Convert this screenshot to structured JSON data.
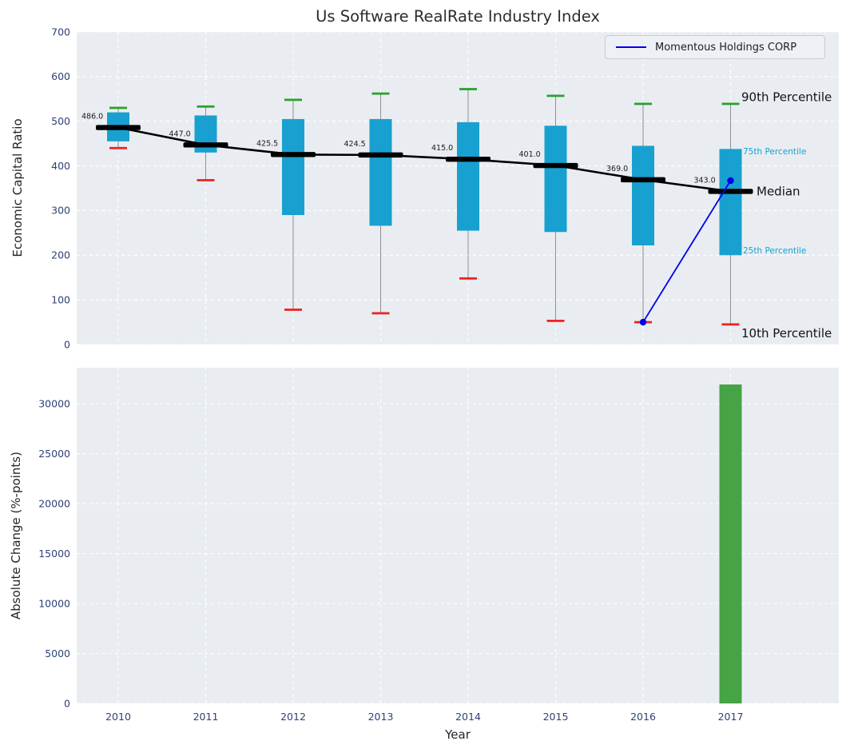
{
  "figure": {
    "title": "Us Software RealRate Industry Index",
    "legend": {
      "label": "Momentous Holdings CORP",
      "position": "upper right"
    },
    "colors": {
      "box": "#18a1d0",
      "p90_cap": "#2ca02c",
      "p10_cap": "#ee2222",
      "median": "#000000",
      "company": "#0000ee",
      "bar": "#46a346",
      "plot_bg": "#e9edf2",
      "grid": "#ffffff",
      "tick": "#2e4274",
      "whisker": "#909090",
      "annotation_small": "#18a1d0",
      "annotation_large": "#111118",
      "median_label": "#1a1a1a"
    }
  },
  "chart_data": [
    {
      "type": "boxplot",
      "title": "Us Software RealRate Industry Index",
      "ylabel": "Economic Capital Ratio",
      "ylim": [
        0,
        700
      ],
      "yticks": [
        0,
        100,
        200,
        300,
        400,
        500,
        600,
        700
      ],
      "categories": [
        "2010",
        "2011",
        "2012",
        "2013",
        "2014",
        "2015",
        "2016",
        "2017"
      ],
      "series": [
        {
          "year": "2010",
          "p10": 440,
          "q25": 455,
          "median": 486.0,
          "q75": 520,
          "p90": 530
        },
        {
          "year": "2011",
          "p10": 368,
          "q25": 430,
          "median": 447.0,
          "q75": 513,
          "p90": 533
        },
        {
          "year": "2012",
          "p10": 78,
          "q25": 290,
          "median": 425.5,
          "q75": 505,
          "p90": 548
        },
        {
          "year": "2013",
          "p10": 70,
          "q25": 266,
          "median": 424.5,
          "q75": 505,
          "p90": 562
        },
        {
          "year": "2014",
          "p10": 148,
          "q25": 255,
          "median": 415.0,
          "q75": 498,
          "p90": 572
        },
        {
          "year": "2015",
          "p10": 53,
          "q25": 252,
          "median": 401.0,
          "q75": 490,
          "p90": 557
        },
        {
          "year": "2016",
          "p10": 50,
          "q25": 222,
          "median": 369.0,
          "q75": 445,
          "p90": 539
        },
        {
          "year": "2017",
          "p10": 45,
          "q25": 200,
          "median": 343.0,
          "q75": 438,
          "p90": 539
        }
      ],
      "median_labels": [
        "486.0",
        "447.0",
        "425.5",
        "424.5",
        "415.0",
        "401.0",
        "369.0",
        "343.0"
      ],
      "company_line": {
        "name": "Momentous Holdings CORP",
        "points": [
          [
            "2016",
            50
          ],
          [
            "2017",
            367
          ]
        ]
      },
      "percentile_annotations": [
        {
          "text": "90th Percentile",
          "anchor_value": 538,
          "style": "large"
        },
        {
          "text": "75th Percentile",
          "anchor_value": 438,
          "style": "small"
        },
        {
          "text": "Median",
          "anchor_value": 343,
          "style": "large"
        },
        {
          "text": "25th Percentile",
          "anchor_value": 200,
          "style": "small"
        },
        {
          "text": "10th Percentile",
          "anchor_value": 45,
          "style": "large"
        }
      ],
      "legend_entries": [
        "Momentous Holdings CORP"
      ],
      "grid": true
    },
    {
      "type": "bar",
      "xlabel": "Year",
      "ylabel": "Absolute Change (%-points)",
      "ylim": [
        0,
        33600
      ],
      "yticks": [
        0,
        5000,
        10000,
        15000,
        20000,
        25000,
        30000
      ],
      "categories": [
        "2010",
        "2011",
        "2012",
        "2013",
        "2014",
        "2015",
        "2016",
        "2017"
      ],
      "values": [
        null,
        null,
        null,
        null,
        null,
        null,
        null,
        31920
      ],
      "grid": true
    }
  ]
}
